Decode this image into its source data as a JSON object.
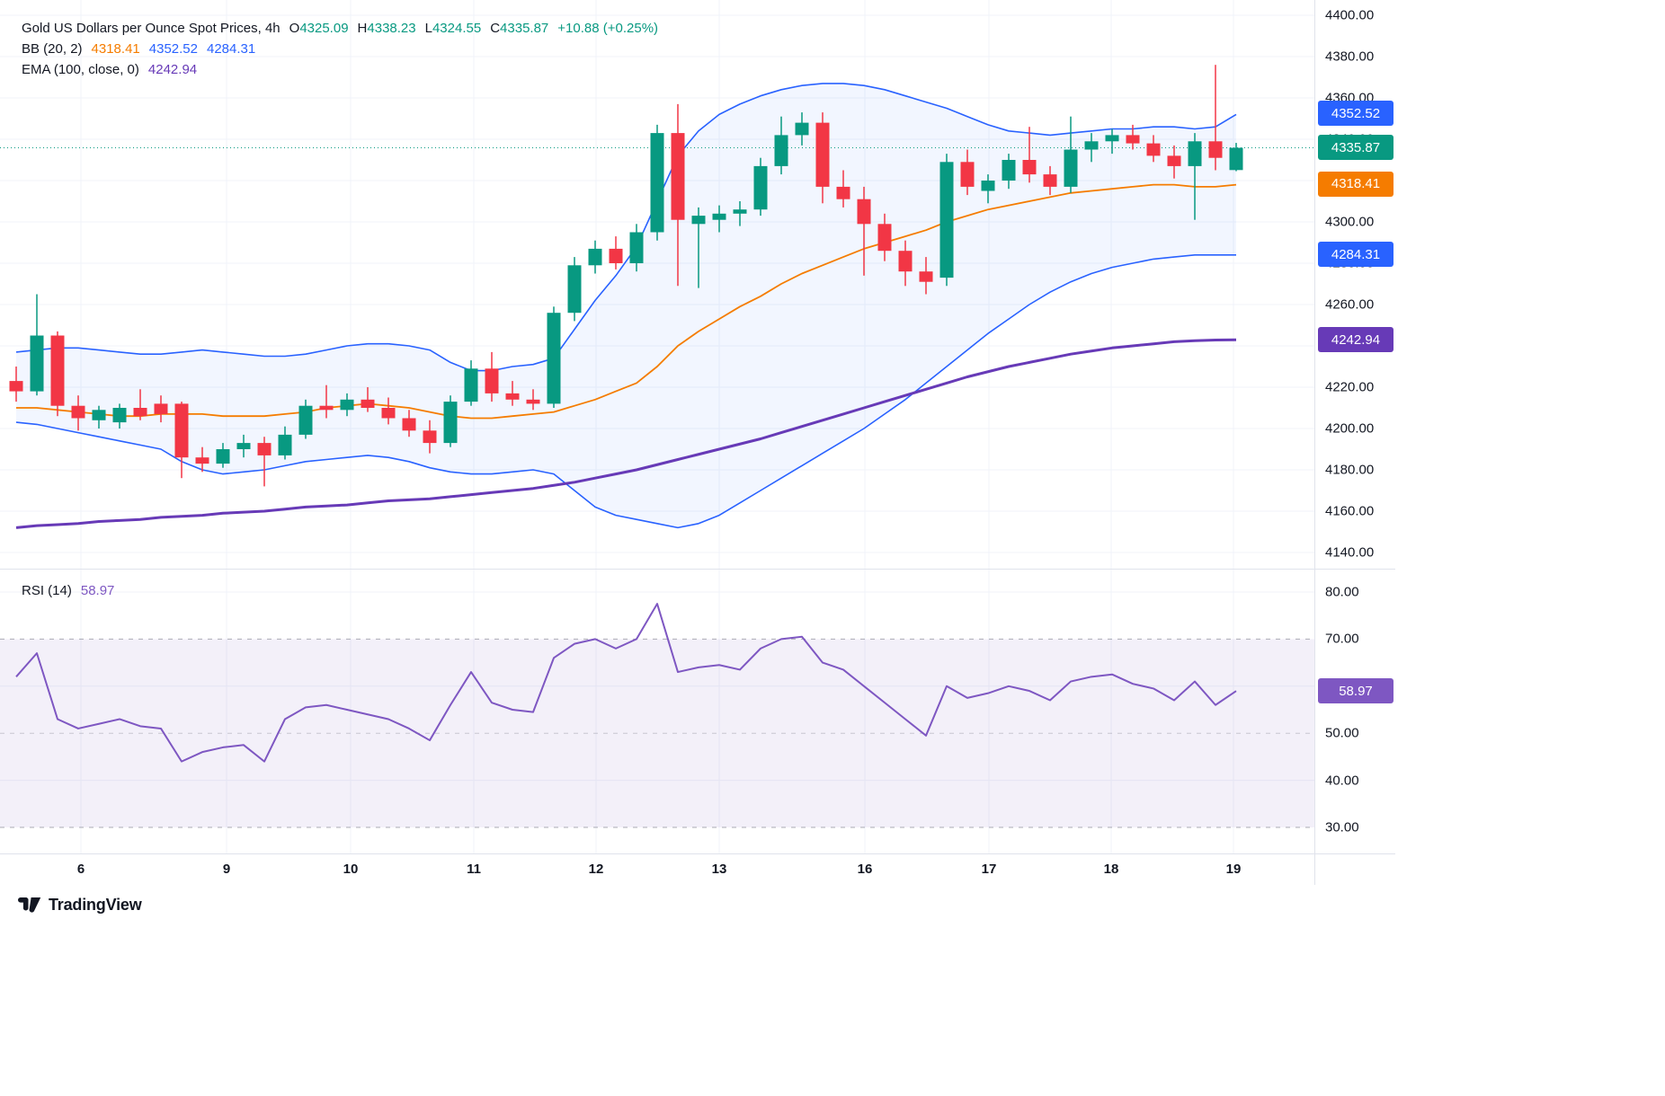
{
  "header": {
    "title": "Gold US Dollars per Ounce Spot Prices, 4h",
    "ohlc": {
      "o_label": "O",
      "o": "4325.09",
      "h_label": "H",
      "h": "4338.23",
      "l_label": "L",
      "l": "4324.55",
      "c_label": "C",
      "c": "4335.87",
      "change": "+10.88 (+0.25%)"
    },
    "bb": {
      "label": "BB (20, 2)",
      "basis": "4318.41",
      "upper": "4352.52",
      "lower": "4284.31"
    },
    "ema": {
      "label": "EMA (100, close, 0)",
      "value": "4242.94"
    }
  },
  "rsi_legend": {
    "label": "RSI (14)",
    "value": "58.97"
  },
  "colors": {
    "up": "#089981",
    "down": "#f23645",
    "bb_line": "#2962ff",
    "bb_fill": "rgba(41,98,255,0.06)",
    "bb_basis": "#f57c00",
    "ema": "#673ab7",
    "rsi": "#7e57c2",
    "rsi_fill": "rgba(126,87,194,0.09)",
    "grid": "#f0f3fa",
    "separator": "#e0e3eb",
    "axis_text": "#131722",
    "level": "#787b86"
  },
  "price_axis": {
    "labels": [
      "4400.00",
      "4380.00",
      "4360.00",
      "4340.00",
      "4320.00",
      "4300.00",
      "4280.00",
      "4260.00",
      "4240.00",
      "4220.00",
      "4200.00",
      "4180.00",
      "4160.00",
      "4140.00"
    ],
    "values": [
      4400,
      4380,
      4360,
      4340,
      4320,
      4300,
      4280,
      4260,
      4240,
      4220,
      4200,
      4180,
      4160,
      4140
    ],
    "badges": [
      {
        "text": "4352.52",
        "value": 4352.52,
        "color": "#2962ff"
      },
      {
        "text": "4335.87",
        "value": 4335.87,
        "color": "#089981"
      },
      {
        "text": "4318.41",
        "value": 4318.41,
        "color": "#f57c00"
      },
      {
        "text": "4284.31",
        "value": 4284.31,
        "color": "#2962ff"
      },
      {
        "text": "4242.94",
        "value": 4242.94,
        "color": "#673ab7"
      }
    ]
  },
  "rsi_axis": {
    "labels": [
      "80.00",
      "70.00",
      "60.00",
      "50.00",
      "40.00",
      "30.00"
    ],
    "values": [
      80,
      70,
      60,
      50,
      40,
      30
    ],
    "badge": {
      "text": "58.97",
      "value": 58.97,
      "color": "#7e57c2"
    }
  },
  "time_axis": {
    "labels": [
      "6",
      "9",
      "10",
      "11",
      "12",
      "13",
      "16",
      "17",
      "18",
      "19"
    ]
  },
  "footer": {
    "brand": "TradingView"
  },
  "chart_data": [
    {
      "type": "candlestick",
      "title": "Gold US Dollars per Ounce Spot Prices, 4h",
      "timeframe": "4h",
      "x_tick_labels": [
        "6",
        "9",
        "10",
        "11",
        "12",
        "13",
        "16",
        "17",
        "18",
        "19"
      ],
      "ylim": [
        4140,
        4400
      ],
      "y_tick_step": 20,
      "last_close": 4335.87,
      "candles": [
        [
          4223,
          4230,
          4213,
          4218
        ],
        [
          4218,
          4265,
          4216,
          4245
        ],
        [
          4245,
          4247,
          4206,
          4211
        ],
        [
          4211,
          4216,
          4199,
          4205
        ],
        [
          4204,
          4211,
          4200,
          4209
        ],
        [
          4203,
          4212,
          4200,
          4210
        ],
        [
          4210,
          4219,
          4204,
          4206
        ],
        [
          4212,
          4216,
          4203,
          4207
        ],
        [
          4212,
          4213,
          4176,
          4186
        ],
        [
          4186,
          4191,
          4179,
          4183
        ],
        [
          4183,
          4193,
          4181,
          4190
        ],
        [
          4190,
          4197,
          4186,
          4193
        ],
        [
          4193,
          4196,
          4172,
          4187
        ],
        [
          4187,
          4201,
          4185,
          4197
        ],
        [
          4197,
          4214,
          4195,
          4211
        ],
        [
          4211,
          4221,
          4205,
          4209
        ],
        [
          4209,
          4217,
          4206,
          4214
        ],
        [
          4214,
          4220,
          4208,
          4210
        ],
        [
          4210,
          4215,
          4202,
          4205
        ],
        [
          4205,
          4209,
          4196,
          4199
        ],
        [
          4199,
          4204,
          4188,
          4193
        ],
        [
          4193,
          4216,
          4191,
          4213
        ],
        [
          4213,
          4233,
          4211,
          4229
        ],
        [
          4229,
          4237,
          4213,
          4217
        ],
        [
          4217,
          4223,
          4211,
          4214
        ],
        [
          4214,
          4219,
          4209,
          4212
        ],
        [
          4212,
          4259,
          4210,
          4256
        ],
        [
          4256,
          4283,
          4252,
          4279
        ],
        [
          4279,
          4291,
          4275,
          4287
        ],
        [
          4287,
          4293,
          4277,
          4280
        ],
        [
          4280,
          4299,
          4276,
          4295
        ],
        [
          4295,
          4347,
          4291,
          4343
        ],
        [
          4343,
          4357,
          4269,
          4301
        ],
        [
          4299,
          4307,
          4268,
          4303
        ],
        [
          4301,
          4308,
          4295,
          4304
        ],
        [
          4304,
          4310,
          4298,
          4306
        ],
        [
          4306,
          4331,
          4303,
          4327
        ],
        [
          4327,
          4351,
          4323,
          4342
        ],
        [
          4342,
          4353,
          4337,
          4348
        ],
        [
          4348,
          4353,
          4309,
          4317
        ],
        [
          4317,
          4325,
          4307,
          4311
        ],
        [
          4311,
          4317,
          4274,
          4299
        ],
        [
          4299,
          4304,
          4281,
          4286
        ],
        [
          4286,
          4291,
          4269,
          4276
        ],
        [
          4276,
          4283,
          4265,
          4271
        ],
        [
          4273,
          4333,
          4269,
          4329
        ],
        [
          4329,
          4335,
          4313,
          4317
        ],
        [
          4315,
          4323,
          4309,
          4320
        ],
        [
          4320,
          4333,
          4316,
          4330
        ],
        [
          4330,
          4346,
          4319,
          4323
        ],
        [
          4323,
          4327,
          4313,
          4317
        ],
        [
          4317,
          4351,
          4314,
          4335
        ],
        [
          4335,
          4343,
          4329,
          4339
        ],
        [
          4339,
          4345,
          4333,
          4342
        ],
        [
          4342,
          4347,
          4335,
          4338
        ],
        [
          4338,
          4342,
          4329,
          4332
        ],
        [
          4332,
          4337,
          4321,
          4327
        ],
        [
          4327,
          4343,
          4301,
          4339
        ],
        [
          4339,
          4376,
          4325,
          4331
        ],
        [
          4325.09,
          4338.23,
          4324.55,
          4335.87
        ]
      ],
      "overlays": [
        {
          "role": "bb_upper",
          "name": "BB upper (20, 2)",
          "color": "#2962ff",
          "values": [
            4237,
            4238,
            4239,
            4239,
            4238,
            4237,
            4236,
            4236,
            4237,
            4238,
            4237,
            4236,
            4235,
            4235,
            4236,
            4238,
            4240,
            4241,
            4241,
            4240,
            4238,
            4232,
            4228,
            4228,
            4230,
            4231,
            4234,
            4248,
            4262,
            4274,
            4288,
            4310,
            4332,
            4344,
            4352,
            4357,
            4361,
            4364,
            4366,
            4367,
            4367,
            4366,
            4364,
            4361,
            4358,
            4355,
            4351,
            4347,
            4344,
            4343,
            4342,
            4343,
            4344,
            4345,
            4345,
            4346,
            4346,
            4345,
            4346,
            4352
          ]
        },
        {
          "role": "bb_basis",
          "name": "BB basis (20, 2)",
          "color": "#f57c00",
          "values": [
            4210,
            4210,
            4209,
            4208,
            4207,
            4206,
            4206,
            4207,
            4207,
            4207,
            4206,
            4206,
            4206,
            4207,
            4208,
            4210,
            4211,
            4212,
            4211,
            4210,
            4208,
            4206,
            4205,
            4205,
            4206,
            4207,
            4208,
            4211,
            4214,
            4218,
            4222,
            4230,
            4240,
            4247,
            4253,
            4259,
            4264,
            4270,
            4275,
            4279,
            4283,
            4287,
            4290,
            4293,
            4296,
            4300,
            4303,
            4306,
            4308,
            4310,
            4312,
            4314,
            4315,
            4316,
            4317,
            4318,
            4318,
            4317,
            4317,
            4318
          ]
        },
        {
          "role": "bb_lower",
          "name": "BB lower (20, 2)",
          "color": "#2962ff",
          "values": [
            4203,
            4202,
            4200,
            4198,
            4196,
            4194,
            4192,
            4190,
            4184,
            4180,
            4178,
            4179,
            4180,
            4182,
            4184,
            4185,
            4186,
            4187,
            4186,
            4184,
            4181,
            4179,
            4178,
            4178,
            4179,
            4180,
            4178,
            4170,
            4162,
            4158,
            4156,
            4154,
            4152,
            4154,
            4158,
            4164,
            4170,
            4176,
            4182,
            4188,
            4194,
            4200,
            4207,
            4214,
            4222,
            4230,
            4238,
            4246,
            4253,
            4260,
            4266,
            4271,
            4275,
            4278,
            4280,
            4282,
            4283,
            4284,
            4284,
            4284
          ]
        },
        {
          "role": "ema",
          "name": "EMA (100, close, 0)",
          "color": "#673ab7",
          "values": [
            4152,
            4153,
            4153.5,
            4154,
            4155,
            4155.5,
            4156,
            4157,
            4157.5,
            4158,
            4159,
            4159.5,
            4160,
            4161,
            4162,
            4162.5,
            4163,
            4164,
            4165,
            4165.5,
            4166,
            4167,
            4168,
            4169,
            4170,
            4171,
            4172.5,
            4174,
            4176,
            4178,
            4180,
            4182.5,
            4185,
            4187.5,
            4190,
            4192.5,
            4195,
            4198,
            4201,
            4204,
            4207,
            4210,
            4213,
            4216,
            4219,
            4222,
            4225,
            4227.5,
            4230,
            4232,
            4234,
            4236,
            4237.5,
            4239,
            4240,
            4241,
            4242,
            4242.5,
            4242.8,
            4242.94
          ]
        }
      ]
    },
    {
      "type": "line",
      "title": "RSI (14)",
      "color": "#7e57c2",
      "ylim": [
        25,
        85
      ],
      "levels": [
        70,
        50,
        30
      ],
      "band": [
        30,
        70
      ],
      "last_value": 58.97,
      "values": [
        62,
        67,
        53,
        51,
        52,
        53,
        51.5,
        51,
        44,
        46,
        47,
        47.5,
        44,
        53,
        55.5,
        56,
        55,
        54,
        53,
        51,
        48.5,
        56,
        63,
        56.5,
        55,
        54.5,
        66,
        69,
        70,
        68,
        70,
        77.5,
        63,
        64,
        64.5,
        63.5,
        68,
        70,
        70.5,
        65,
        63.5,
        60,
        56.5,
        53,
        49.5,
        60,
        57.5,
        58.5,
        60,
        59,
        57,
        61,
        62,
        62.5,
        60.5,
        59.5,
        57,
        61,
        56,
        58.97
      ]
    }
  ]
}
